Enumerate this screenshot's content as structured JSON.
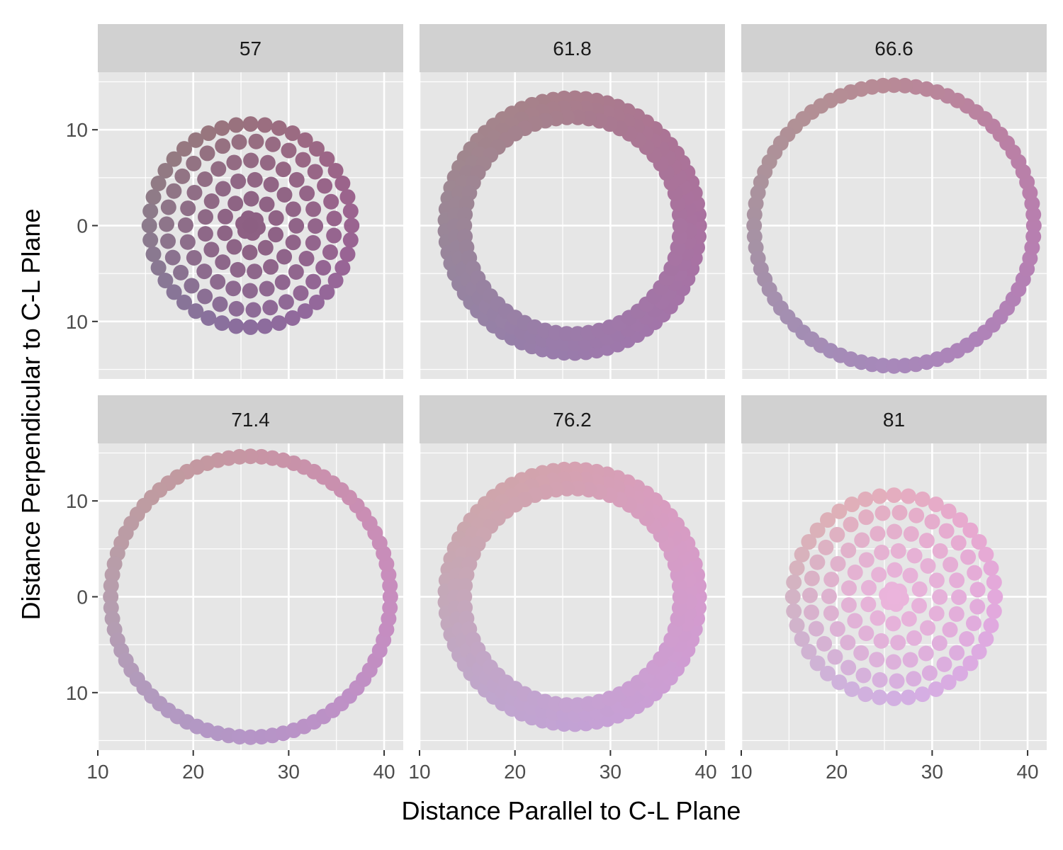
{
  "chart_data": {
    "type": "scatter",
    "xlabel": "Distance Parallel to C-L Plane",
    "ylabel": "Distance Perpendicular to C-L Plane",
    "xlim": [
      10,
      42
    ],
    "ylim": [
      -16,
      16
    ],
    "x_ticks": [
      10,
      20,
      30,
      40
    ],
    "y_ticks": [
      -10,
      0,
      10
    ],
    "y_tick_labels": [
      "10",
      "0",
      "10"
    ],
    "grid": true,
    "legend": "none",
    "center": [
      26,
      0
    ],
    "facets": [
      {
        "label": "57",
        "shape": "disk",
        "outer_radius": 11,
        "inner_radius": 0,
        "brightness": 0.0
      },
      {
        "label": "61.8",
        "shape": "ring",
        "outer_radius": 14,
        "inner_radius": 10.6,
        "brightness": 0.2
      },
      {
        "label": "66.6",
        "shape": "ring",
        "outer_radius": 15,
        "inner_radius": 14.3,
        "brightness": 0.4
      },
      {
        "label": "71.4",
        "shape": "ring",
        "outer_radius": 15,
        "inner_radius": 14.3,
        "brightness": 0.6
      },
      {
        "label": "76.2",
        "shape": "ring",
        "outer_radius": 14,
        "inner_radius": 10.6,
        "brightness": 0.8
      },
      {
        "label": "81",
        "shape": "disk",
        "outer_radius": 11,
        "inner_radius": 0,
        "brightness": 1.0
      }
    ],
    "colors": {
      "panel_bg": "#e6e6e6",
      "strip_bg": "#d1d1d1",
      "grid": "#ffffff",
      "tick": "#333333"
    }
  }
}
